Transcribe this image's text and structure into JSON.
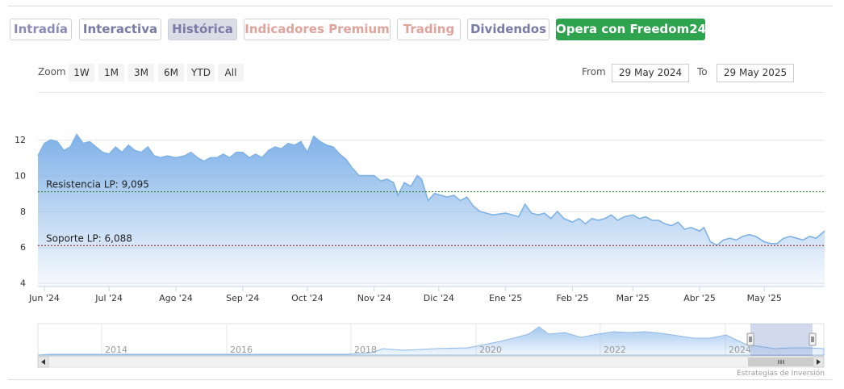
{
  "tabs": [
    {
      "label": "Intradía",
      "color": "#8b8bb5",
      "active": false
    },
    {
      "label": "Interactiva",
      "color": "#7a7aa6",
      "active": false
    },
    {
      "label": "Histórica",
      "color": "#7a7aa6",
      "active": true
    },
    {
      "label": "Indicadores Premium",
      "color": "#e0a39c",
      "active": false
    },
    {
      "label": "Trading",
      "color": "#e0a39c",
      "active": false
    },
    {
      "label": "Dividendos",
      "color": "#7a7aa6",
      "active": false
    }
  ],
  "cta": {
    "label": "Opera con Freedom24",
    "color": "#2ea44f"
  },
  "zoom": {
    "label": "Zoom",
    "options": [
      "1W",
      "1M",
      "3M",
      "6M",
      "YTD",
      "All"
    ]
  },
  "range": {
    "from_label": "From",
    "from_value": "29 May 2024",
    "to_label": "To",
    "to_value": "29 May 2025"
  },
  "credit": "Estrategias de Inversión",
  "colors": {
    "line": "#7fb2e5",
    "fill_top": "#7fb1e8",
    "support": "#8b1a1a",
    "resistance": "#1e7a1e"
  },
  "chart_data": {
    "type": "area",
    "title": "",
    "ylim": [
      3.8,
      13.5
    ],
    "yticks": [
      4,
      6,
      8,
      10,
      12
    ],
    "xlim": [
      "2024-05-29",
      "2025-05-29"
    ],
    "xticks": [
      {
        "date": "2024-06-01",
        "label": "Jun '24"
      },
      {
        "date": "2024-07-01",
        "label": "Jul '24"
      },
      {
        "date": "2024-08-01",
        "label": "Ago '24"
      },
      {
        "date": "2024-09-01",
        "label": "Sep '24"
      },
      {
        "date": "2024-10-01",
        "label": "Oct '24"
      },
      {
        "date": "2024-11-01",
        "label": "Nov '24"
      },
      {
        "date": "2024-12-01",
        "label": "Dic '24"
      },
      {
        "date": "2025-01-01",
        "label": "Ene '25"
      },
      {
        "date": "2025-02-01",
        "label": "Feb '25"
      },
      {
        "date": "2025-03-01",
        "label": "Mar '25"
      },
      {
        "date": "2025-04-01",
        "label": "Abr '25"
      },
      {
        "date": "2025-05-01",
        "label": "May '25"
      }
    ],
    "series": [
      {
        "points": [
          [
            "2024-05-29",
            11.1
          ],
          [
            "2024-06-01",
            11.8
          ],
          [
            "2024-06-04",
            12.0
          ],
          [
            "2024-06-07",
            11.9
          ],
          [
            "2024-06-10",
            11.4
          ],
          [
            "2024-06-13",
            11.6
          ],
          [
            "2024-06-16",
            12.3
          ],
          [
            "2024-06-19",
            11.8
          ],
          [
            "2024-06-22",
            11.9
          ],
          [
            "2024-06-25",
            11.6
          ],
          [
            "2024-06-28",
            11.3
          ],
          [
            "2024-07-01",
            11.2
          ],
          [
            "2024-07-04",
            11.6
          ],
          [
            "2024-07-07",
            11.3
          ],
          [
            "2024-07-10",
            11.7
          ],
          [
            "2024-07-13",
            11.4
          ],
          [
            "2024-07-16",
            11.3
          ],
          [
            "2024-07-19",
            11.6
          ],
          [
            "2024-07-22",
            11.1
          ],
          [
            "2024-07-25",
            11.0
          ],
          [
            "2024-07-28",
            11.1
          ],
          [
            "2024-08-01",
            11.0
          ],
          [
            "2024-08-05",
            11.1
          ],
          [
            "2024-08-08",
            11.3
          ],
          [
            "2024-08-11",
            11.0
          ],
          [
            "2024-08-14",
            10.8
          ],
          [
            "2024-08-17",
            11.0
          ],
          [
            "2024-08-20",
            11.0
          ],
          [
            "2024-08-23",
            11.2
          ],
          [
            "2024-08-26",
            11.0
          ],
          [
            "2024-08-29",
            11.3
          ],
          [
            "2024-09-01",
            11.3
          ],
          [
            "2024-09-04",
            11.0
          ],
          [
            "2024-09-07",
            11.2
          ],
          [
            "2024-09-10",
            11.0
          ],
          [
            "2024-09-13",
            11.4
          ],
          [
            "2024-09-16",
            11.6
          ],
          [
            "2024-09-19",
            11.5
          ],
          [
            "2024-09-22",
            11.8
          ],
          [
            "2024-09-25",
            11.7
          ],
          [
            "2024-09-28",
            11.9
          ],
          [
            "2024-10-01",
            11.3
          ],
          [
            "2024-10-04",
            12.2
          ],
          [
            "2024-10-07",
            11.9
          ],
          [
            "2024-10-10",
            11.7
          ],
          [
            "2024-10-13",
            11.6
          ],
          [
            "2024-10-16",
            11.2
          ],
          [
            "2024-10-19",
            10.9
          ],
          [
            "2024-10-22",
            10.4
          ],
          [
            "2024-10-25",
            10.0
          ],
          [
            "2024-10-28",
            10.0
          ],
          [
            "2024-11-01",
            10.0
          ],
          [
            "2024-11-04",
            9.7
          ],
          [
            "2024-11-07",
            9.8
          ],
          [
            "2024-11-10",
            9.6
          ],
          [
            "2024-11-12",
            8.9
          ],
          [
            "2024-11-15",
            9.6
          ],
          [
            "2024-11-18",
            9.4
          ],
          [
            "2024-11-21",
            10.0
          ],
          [
            "2024-11-23",
            9.8
          ],
          [
            "2024-11-26",
            8.6
          ],
          [
            "2024-11-29",
            9.0
          ],
          [
            "2024-12-02",
            8.9
          ],
          [
            "2024-12-05",
            8.8
          ],
          [
            "2024-12-08",
            8.9
          ],
          [
            "2024-12-11",
            8.6
          ],
          [
            "2024-12-14",
            8.8
          ],
          [
            "2024-12-17",
            8.3
          ],
          [
            "2024-12-20",
            8.0
          ],
          [
            "2024-12-23",
            7.9
          ],
          [
            "2024-12-26",
            7.8
          ],
          [
            "2025-01-01",
            7.9
          ],
          [
            "2025-01-04",
            7.8
          ],
          [
            "2025-01-07",
            7.7
          ],
          [
            "2025-01-10",
            8.4
          ],
          [
            "2025-01-13",
            7.9
          ],
          [
            "2025-01-16",
            7.8
          ],
          [
            "2025-01-19",
            7.9
          ],
          [
            "2025-01-22",
            7.6
          ],
          [
            "2025-01-25",
            8.0
          ],
          [
            "2025-01-28",
            7.6
          ],
          [
            "2025-02-01",
            7.4
          ],
          [
            "2025-02-04",
            7.6
          ],
          [
            "2025-02-07",
            7.3
          ],
          [
            "2025-02-10",
            7.6
          ],
          [
            "2025-02-13",
            7.5
          ],
          [
            "2025-02-16",
            7.6
          ],
          [
            "2025-02-19",
            7.8
          ],
          [
            "2025-02-22",
            7.5
          ],
          [
            "2025-02-25",
            7.7
          ],
          [
            "2025-03-01",
            7.8
          ],
          [
            "2025-03-04",
            7.6
          ],
          [
            "2025-03-07",
            7.7
          ],
          [
            "2025-03-10",
            7.5
          ],
          [
            "2025-03-13",
            7.5
          ],
          [
            "2025-03-16",
            7.3
          ],
          [
            "2025-03-19",
            7.2
          ],
          [
            "2025-03-22",
            7.4
          ],
          [
            "2025-03-25",
            7.0
          ],
          [
            "2025-03-28",
            7.1
          ],
          [
            "2025-04-01",
            6.9
          ],
          [
            "2025-04-03",
            7.1
          ],
          [
            "2025-04-06",
            6.3
          ],
          [
            "2025-04-09",
            6.1
          ],
          [
            "2025-04-12",
            6.4
          ],
          [
            "2025-04-15",
            6.5
          ],
          [
            "2025-04-18",
            6.4
          ],
          [
            "2025-04-21",
            6.6
          ],
          [
            "2025-04-24",
            6.7
          ],
          [
            "2025-04-27",
            6.6
          ],
          [
            "2025-05-01",
            6.3
          ],
          [
            "2025-05-04",
            6.2
          ],
          [
            "2025-05-07",
            6.2
          ],
          [
            "2025-05-10",
            6.5
          ],
          [
            "2025-05-13",
            6.6
          ],
          [
            "2025-05-16",
            6.5
          ],
          [
            "2025-05-19",
            6.4
          ],
          [
            "2025-05-22",
            6.6
          ],
          [
            "2025-05-25",
            6.5
          ],
          [
            "2025-05-29",
            6.9
          ]
        ]
      }
    ],
    "annotations": [
      {
        "label": "Resistencia LP: 9,095",
        "value": 9.095,
        "kind": "resistance"
      },
      {
        "label": "Soporte LP: 6,088",
        "value": 6.088,
        "kind": "support"
      }
    ],
    "navigator": {
      "xlabels": [
        "2014",
        "2016",
        "2018",
        "2020",
        "2022",
        "2024"
      ],
      "selected": [
        "2024-05-29",
        "2025-05-29"
      ]
    }
  }
}
